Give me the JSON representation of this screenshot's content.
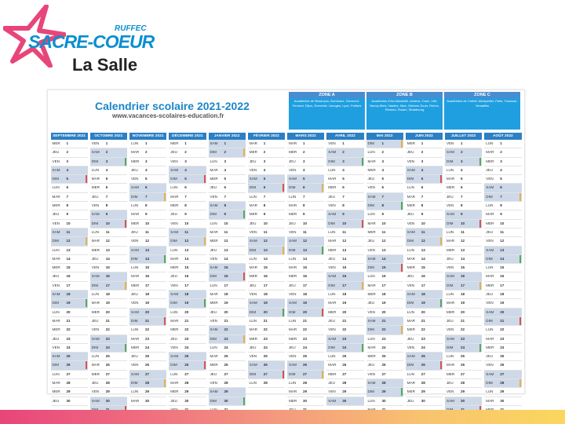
{
  "logo": {
    "ruffec": "RUFFEC",
    "name": "SACRE-COEUR",
    "subtitle": "La Salle"
  },
  "calendar": {
    "title": "Calendrier scolaire 2021-2022",
    "url": "www.vacances-scolaires-education.fr",
    "zones": [
      {
        "label": "ZONE A",
        "text": "Académies de Besançon, Bordeaux, Clermont-Ferrand, Dijon, Grenoble, Limoges, Lyon, Poitiers"
      },
      {
        "label": "ZONE B",
        "text": "Académies d'Aix-Marseille, Amiens, Caen, Lille, Nancy-Metz, Nantes, Nice, Orléans-Tours, Reims, Rennes, Rouen, Strasbourg"
      },
      {
        "label": "ZONE C",
        "text": "Académies de Créteil, Montpellier, Paris, Toulouse, Versailles"
      }
    ],
    "months": [
      {
        "name": "SEPTEMBRE 2021",
        "start": "MER"
      },
      {
        "name": "OCTOBRE 2021",
        "start": "VEN"
      },
      {
        "name": "NOVEMBRE 2021",
        "start": "LUN"
      },
      {
        "name": "DÉCEMBRE 2021",
        "start": "MER"
      },
      {
        "name": "JANVIER 2022",
        "start": "SAM"
      },
      {
        "name": "FÉVRIER 2022",
        "start": "MAR"
      },
      {
        "name": "MARS 2022",
        "start": "MAR"
      },
      {
        "name": "AVRIL 2022",
        "start": "VEN"
      },
      {
        "name": "MAI 2022",
        "start": "DIM"
      },
      {
        "name": "JUIN 2022",
        "start": "MER"
      },
      {
        "name": "JUILLET 2022",
        "start": "VEN"
      },
      {
        "name": "AOÛT 2022",
        "start": "LUN"
      }
    ],
    "days_in_month": [
      30,
      31,
      30,
      31,
      31,
      28,
      31,
      30,
      31,
      30,
      31,
      31
    ],
    "weekdays": [
      "LUN",
      "MAR",
      "MER",
      "JEU",
      "VEN",
      "SAM",
      "DIM"
    ],
    "colors": {
      "zoneA": "#e8b04a",
      "zoneB": "#58a85a",
      "zoneC": "#d9534f",
      "header": "#2b7fc4"
    }
  }
}
